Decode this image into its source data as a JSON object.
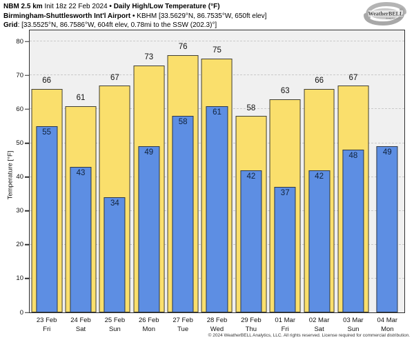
{
  "header": {
    "line1": {
      "model": "NBM 2.5 km",
      "init": " Init 18z 22 Feb 2024 ",
      "product": "• Daily High/Low Temperature (°F)"
    },
    "line2": {
      "station": "Birmingham-Shuttlesworth Int'l Airport •",
      "details": " KBHM [33.5629°N, 86.7535°W, 650ft elev]"
    },
    "line3": {
      "label": "Grid",
      "details": ": [33.5525°N, 86.7586°W, 604ft elev, 0.78mi to the SSW (202.3)°]"
    }
  },
  "logo": {
    "text": "WeatherBELL",
    "subtext": "Analytics LLC"
  },
  "footer": "© 2024 WeatherBELL Analytics, LLC. All rights reserved. License required for commercial distribution.",
  "chart_data": {
    "type": "bar",
    "title": "Daily High/Low Temperature (°F)",
    "ylabel": "Temperature [°F]",
    "xlabel": "",
    "ylim": [
      0,
      83.3
    ],
    "yticks": [
      0,
      10,
      20,
      30,
      40,
      50,
      60,
      70,
      80
    ],
    "grid": true,
    "legend_position": "none",
    "plot_bg": "#f0f0f0",
    "categories": [
      {
        "date": "23 Feb",
        "day": "Fri"
      },
      {
        "date": "24 Feb",
        "day": "Sat"
      },
      {
        "date": "25 Feb",
        "day": "Sun"
      },
      {
        "date": "26 Feb",
        "day": "Mon"
      },
      {
        "date": "27 Feb",
        "day": "Tue"
      },
      {
        "date": "28 Feb",
        "day": "Wed"
      },
      {
        "date": "29 Feb",
        "day": "Thu"
      },
      {
        "date": "01 Mar",
        "day": "Fri"
      },
      {
        "date": "02 Mar",
        "day": "Sat"
      },
      {
        "date": "03 Mar",
        "day": "Sun"
      },
      {
        "date": "04 Mar",
        "day": "Mon"
      }
    ],
    "series": [
      {
        "name": "High",
        "color": "#fadf6c",
        "values": [
          66,
          61,
          67,
          73,
          76,
          75,
          58,
          63,
          66,
          67,
          null
        ]
      },
      {
        "name": "Low",
        "color": "#5d8ee3",
        "values": [
          55,
          43,
          34,
          49,
          58,
          61,
          42,
          37,
          42,
          48,
          49
        ]
      }
    ]
  }
}
